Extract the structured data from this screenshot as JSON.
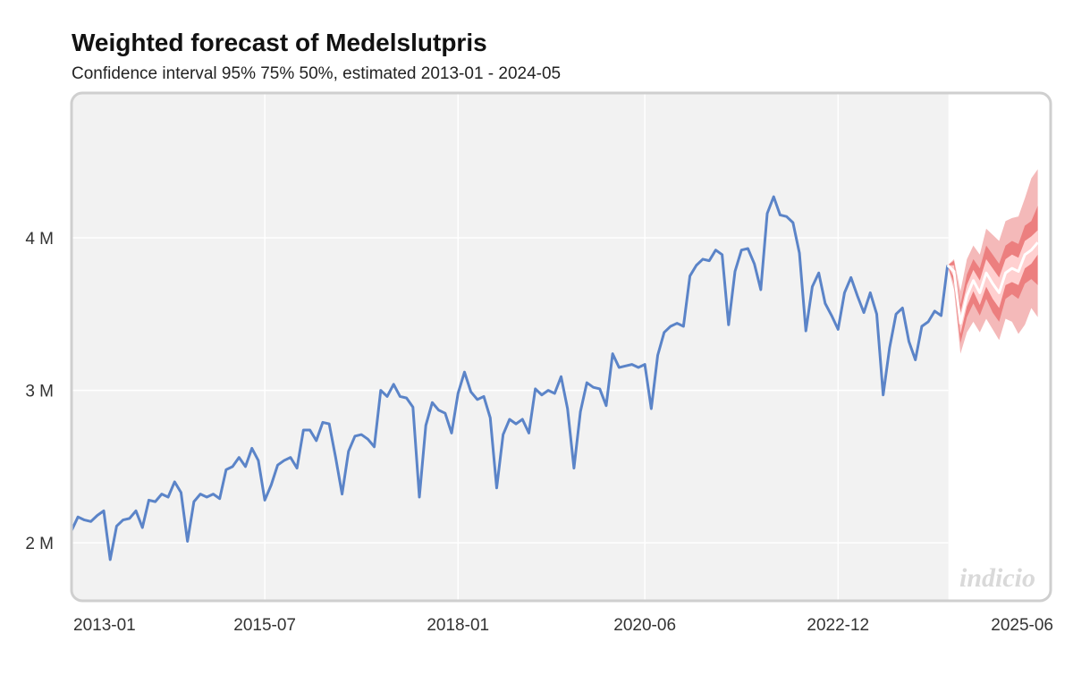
{
  "header": {
    "title": "Weighted forecast of Medelslutpris",
    "subtitle": "Confidence interval 95% 75% 50%, estimated 2013-01 - 2024-05"
  },
  "watermark": "indicio",
  "colors": {
    "history_line": "#5b84c8",
    "forecast_line": "#ffffff",
    "ci95": "#f4b9b9",
    "ci75": "#ec7f7f",
    "ci50": "#ffd0d0",
    "plot_bg": "#f2f2f2",
    "grid": "#ffffff",
    "frame": "#cfcfcf"
  },
  "chart_data": {
    "type": "line",
    "title": "Weighted forecast of Medelslutpris",
    "subtitle": "Confidence interval 95% 75% 50%, estimated 2013-01 - 2024-05",
    "xlabel": "",
    "ylabel": "",
    "x_ticks": [
      "2013-01",
      "2015-07",
      "2018-01",
      "2020-06",
      "2022-12",
      "2025-06"
    ],
    "y_ticks": [
      {
        "value": 2000000,
        "label": "2 M"
      },
      {
        "value": 3000000,
        "label": "3 M"
      },
      {
        "value": 4000000,
        "label": "4 M"
      }
    ],
    "x_range": [
      "2013-01",
      "2025-09"
    ],
    "ylim": [
      1620000,
      4950000
    ],
    "grid": true,
    "history": {
      "start": "2013-01",
      "values": [
        2080000,
        2170000,
        2150000,
        2140000,
        2180000,
        2210000,
        1890000,
        2110000,
        2150000,
        2160000,
        2210000,
        2100000,
        2280000,
        2270000,
        2320000,
        2300000,
        2400000,
        2330000,
        2010000,
        2270000,
        2320000,
        2300000,
        2320000,
        2290000,
        2480000,
        2500000,
        2560000,
        2500000,
        2620000,
        2540000,
        2280000,
        2380000,
        2510000,
        2540000,
        2560000,
        2490000,
        2740000,
        2740000,
        2670000,
        2790000,
        2780000,
        2560000,
        2320000,
        2600000,
        2700000,
        2710000,
        2680000,
        2630000,
        3000000,
        2960000,
        3040000,
        2960000,
        2950000,
        2890000,
        2300000,
        2770000,
        2920000,
        2870000,
        2850000,
        2720000,
        2980000,
        3120000,
        2990000,
        2940000,
        2960000,
        2820000,
        2360000,
        2710000,
        2810000,
        2780000,
        2810000,
        2720000,
        3010000,
        2970000,
        3000000,
        2980000,
        3090000,
        2880000,
        2490000,
        2860000,
        3050000,
        3020000,
        3010000,
        2900000,
        3240000,
        3150000,
        3160000,
        3170000,
        3150000,
        3170000,
        2880000,
        3230000,
        3380000,
        3420000,
        3440000,
        3420000,
        3750000,
        3820000,
        3860000,
        3850000,
        3920000,
        3890000,
        3430000,
        3780000,
        3920000,
        3930000,
        3830000,
        3660000,
        4160000,
        4270000,
        4150000,
        4140000,
        4100000,
        3900000,
        3390000,
        3680000,
        3770000,
        3570000,
        3490000,
        3400000,
        3640000,
        3740000,
        3620000,
        3510000,
        3640000,
        3500000,
        2970000,
        3280000,
        3500000,
        3540000,
        3320000,
        3200000,
        3420000,
        3450000,
        3520000,
        3490000,
        3820000
      ]
    },
    "forecast": {
      "start": "2024-06",
      "point": [
        3780000,
        3440000,
        3620000,
        3720000,
        3640000,
        3770000,
        3700000,
        3640000,
        3770000,
        3800000,
        3780000,
        3890000,
        3920000,
        3970000
      ],
      "ci50_lo": [
        3740000,
        3370000,
        3550000,
        3650000,
        3560000,
        3680000,
        3600000,
        3540000,
        3690000,
        3710000,
        3690000,
        3800000,
        3830000,
        3890000
      ],
      "ci50_hi": [
        3820000,
        3510000,
        3690000,
        3790000,
        3720000,
        3860000,
        3800000,
        3740000,
        3860000,
        3890000,
        3870000,
        3980000,
        4010000,
        4050000
      ],
      "ci75_lo": [
        3700000,
        3310000,
        3480000,
        3570000,
        3490000,
        3600000,
        3510000,
        3450000,
        3600000,
        3630000,
        3600000,
        3700000,
        3730000,
        3690000
      ],
      "ci75_hi": [
        3850000,
        3560000,
        3760000,
        3860000,
        3800000,
        3950000,
        3890000,
        3830000,
        3950000,
        3980000,
        3960000,
        4080000,
        4110000,
        4210000
      ],
      "ci95_lo": [
        3660000,
        3240000,
        3380000,
        3450000,
        3380000,
        3470000,
        3400000,
        3330000,
        3470000,
        3450000,
        3370000,
        3430000,
        3540000,
        3480000
      ],
      "ci95_hi": [
        3860000,
        3650000,
        3860000,
        3950000,
        3890000,
        4060000,
        4020000,
        3980000,
        4110000,
        4130000,
        4140000,
        4260000,
        4390000,
        4450000
      ]
    }
  }
}
